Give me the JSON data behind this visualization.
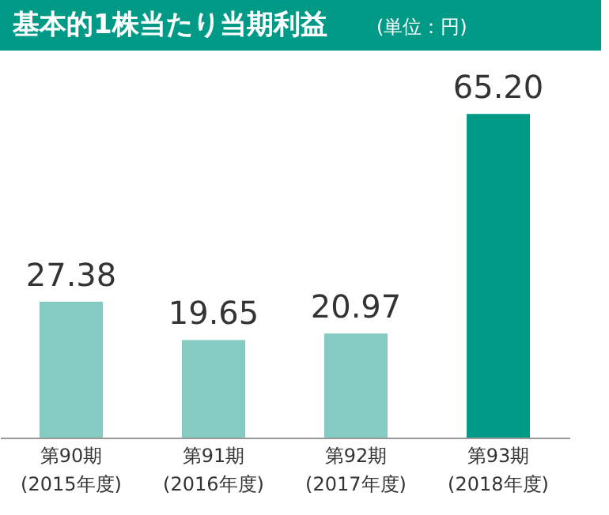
{
  "chart_data": {
    "type": "bar",
    "title": "基本的1株当たり当期利益",
    "subtitle": "(単位：円)",
    "categories": [
      "第90期\n(2015年度)",
      "第91期\n(2016年度)",
      "第92期\n(2017年度)",
      "第93期\n(2018年度)"
    ],
    "values": [
      27.38,
      19.65,
      20.97,
      65.2
    ],
    "colors": [
      "#86cbc1",
      "#86cbc1",
      "#86cbc1",
      "#009a86"
    ],
    "value_labels": [
      "27.38",
      "19.65",
      "20.97",
      "65.20"
    ]
  }
}
